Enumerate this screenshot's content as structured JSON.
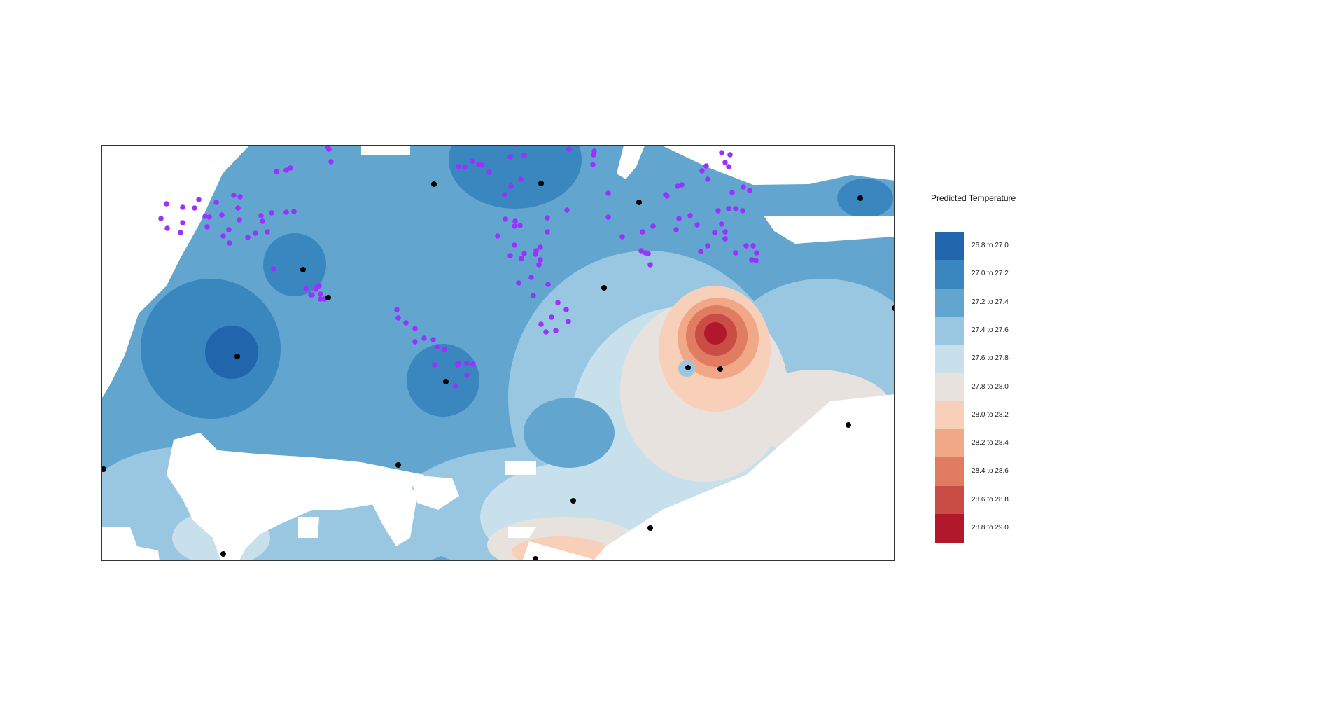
{
  "legend": {
    "title": "Predicted Temperature",
    "classes": [
      {
        "label": "26.8 to 27.0",
        "color": "#2166ac"
      },
      {
        "label": "27.0 to 27.2",
        "color": "#3a86be"
      },
      {
        "label": "27.2 to 27.4",
        "color": "#62a6d0"
      },
      {
        "label": "27.4 to 27.6",
        "color": "#99c7e1"
      },
      {
        "label": "27.6 to 27.8",
        "color": "#c8dfec"
      },
      {
        "label": "27.8 to 28.0",
        "color": "#e8e2de"
      },
      {
        "label": "28.0 to 28.2",
        "color": "#f8cfb8"
      },
      {
        "label": "28.2 to 28.4",
        "color": "#f0a886"
      },
      {
        "label": "28.4 to 28.6",
        "color": "#e07c62"
      },
      {
        "label": "28.6 to 28.8",
        "color": "#c94c45"
      },
      {
        "label": "28.8 to 29.0",
        "color": "#b2182b"
      }
    ]
  },
  "map": {
    "background_color": "#ffffff",
    "land_base_color": "#62a6d0",
    "station_color": "#000000",
    "sample_color": "#9b30ff",
    "frame_color": "#333333"
  }
}
